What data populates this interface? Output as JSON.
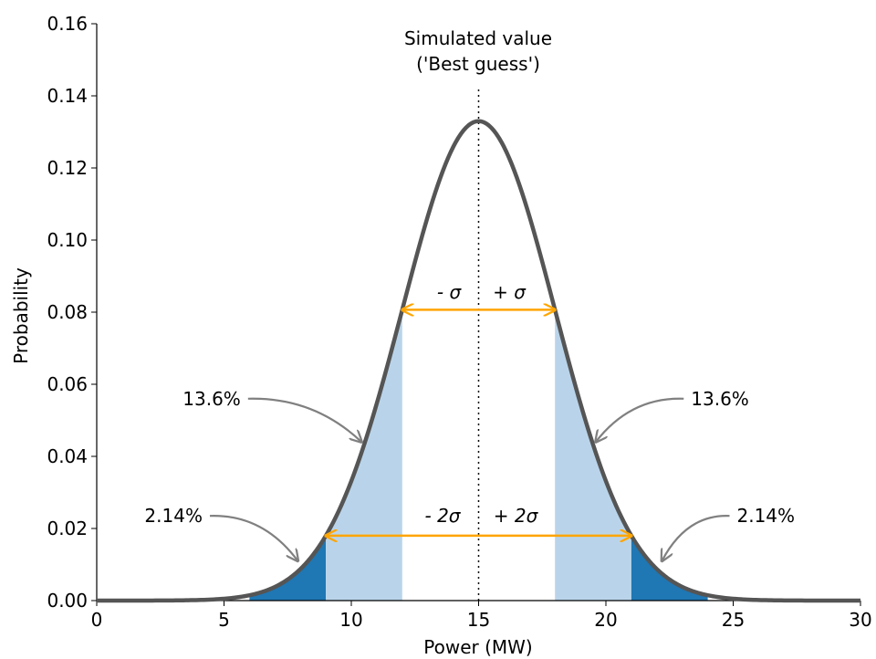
{
  "chart_data": {
    "type": "area",
    "xlabel": "Power (MW)",
    "ylabel": "Probability",
    "xlim": [
      0,
      30
    ],
    "ylim": [
      0,
      0.16
    ],
    "x_ticks": [
      0,
      5,
      10,
      15,
      20,
      25,
      30
    ],
    "y_ticks": [
      "0.00",
      "0.02",
      "0.04",
      "0.06",
      "0.08",
      "0.10",
      "0.12",
      "0.14",
      "0.16"
    ],
    "distribution": {
      "name": "normal",
      "mean": 15,
      "sigma": 3
    },
    "colors": {
      "curve": "#555555",
      "band_1sigma_to_2sigma": "#b9d4ea",
      "band_2sigma_to_3sigma": "#1f77b4",
      "arrows_sigma": "#ffa500",
      "arrows_annotation": "#808080",
      "mean_line": "#000000"
    },
    "mean_line": {
      "x": 15,
      "label_line1": "Simulated value",
      "label_line2": "('Best guess')"
    },
    "sigma_arrows": [
      {
        "x_from": 12,
        "x_to": 18,
        "left_label": "- σ",
        "right_label": "+ σ"
      },
      {
        "x_from": 9,
        "x_to": 21,
        "left_label": "- 2σ",
        "right_label": "+ 2σ"
      }
    ],
    "annotations": [
      {
        "text": "13.6%",
        "side": "left",
        "text_x": 5.8,
        "text_y": 0.056,
        "target_x": 10.4,
        "target_y": 0.044
      },
      {
        "text": "13.6%",
        "side": "right",
        "text_x": 23.2,
        "text_y": 0.056,
        "target_x": 19.6,
        "target_y": 0.044
      },
      {
        "text": "2.14%",
        "side": "left",
        "text_x": 4.3,
        "text_y": 0.0235,
        "target_x": 7.9,
        "target_y": 0.011
      },
      {
        "text": "2.14%",
        "side": "right",
        "text_x": 25.0,
        "text_y": 0.0235,
        "target_x": 22.2,
        "target_y": 0.011
      }
    ]
  }
}
